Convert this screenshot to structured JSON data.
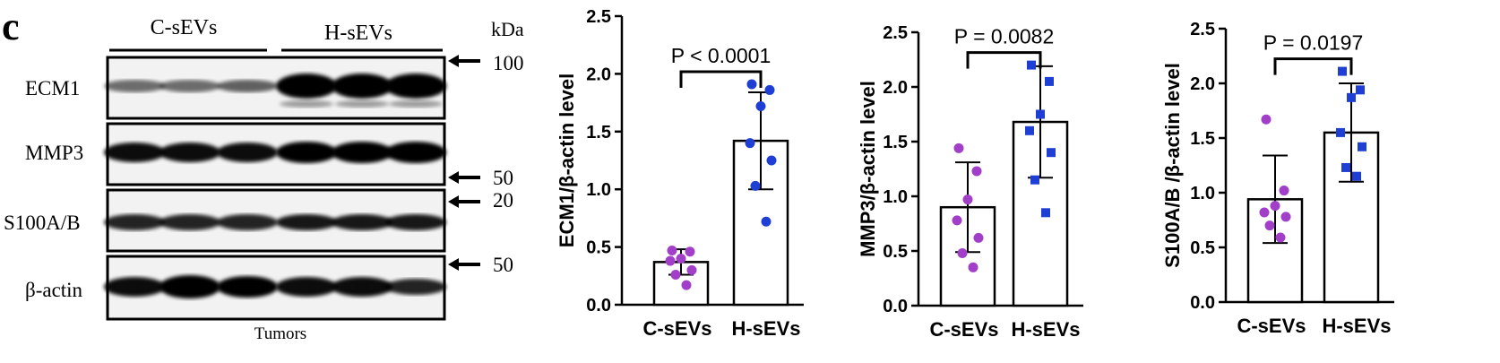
{
  "panel_label": "c",
  "blot": {
    "groups": [
      "C-sEVs",
      "H-sEVs"
    ],
    "unit_label": "kDa",
    "rows": [
      {
        "label": "ECM1",
        "marker": "100"
      },
      {
        "label": "MMP3",
        "marker": "50"
      },
      {
        "label": "S100A/B",
        "marker": "20"
      },
      {
        "label": "β-actin",
        "marker": "50"
      }
    ],
    "footer": "Tumors"
  },
  "chart_data": [
    {
      "type": "bar",
      "ylabel": "ECM1/β-actin  level",
      "categories": [
        "C-sEVs",
        "H-sEVs"
      ],
      "ylim": [
        0,
        2.5
      ],
      "yticks": [
        "0.0",
        "0.5",
        "1.0",
        "1.5",
        "2.0",
        "2.5"
      ],
      "values": [
        0.37,
        1.42
      ],
      "error": [
        0.11,
        0.42
      ],
      "points": [
        [
          0.47,
          0.46,
          0.4,
          0.38,
          0.3,
          0.26,
          0.17
        ],
        [
          1.91,
          1.86,
          1.72,
          1.4,
          1.25,
          1.03,
          0.72
        ]
      ],
      "pvalue": "P < 0.0001",
      "colors": [
        "#a23fc9",
        "#1f3fd4"
      ]
    },
    {
      "type": "bar",
      "ylabel": "MMP3/β-actin  level",
      "categories": [
        "C-sEVs",
        "H-sEVs"
      ],
      "ylim": [
        0,
        2.5
      ],
      "yticks": [
        "0.0",
        "0.5",
        "1.0",
        "1.5",
        "2.0",
        "2.5"
      ],
      "values": [
        0.9,
        1.68
      ],
      "error": [
        0.41,
        0.51
      ],
      "points": [
        [
          1.44,
          1.23,
          0.97,
          0.78,
          0.62,
          0.48,
          0.35
        ],
        [
          2.2,
          2.05,
          1.75,
          1.6,
          1.4,
          1.15,
          0.85
        ]
      ],
      "pvalue": "P = 0.0082",
      "colors": [
        "#a23fc9",
        "#1f3fd4"
      ]
    },
    {
      "type": "bar",
      "ylabel": "S100A/B /β-actin level",
      "categories": [
        "C-sEVs",
        "H-sEVs"
      ],
      "ylim": [
        0,
        2.5
      ],
      "yticks": [
        "0.0",
        "0.5",
        "1.0",
        "1.5",
        "2.0",
        "2.5"
      ],
      "values": [
        0.94,
        1.55
      ],
      "error": [
        0.4,
        0.45
      ],
      "points": [
        [
          1.67,
          1.02,
          0.88,
          0.82,
          0.78,
          0.7,
          0.59
        ],
        [
          2.11,
          1.94,
          1.87,
          1.55,
          1.42,
          1.23,
          1.15
        ]
      ],
      "pvalue": "P = 0.0197",
      "colors": [
        "#a23fc9",
        "#1f3fd4"
      ]
    }
  ]
}
